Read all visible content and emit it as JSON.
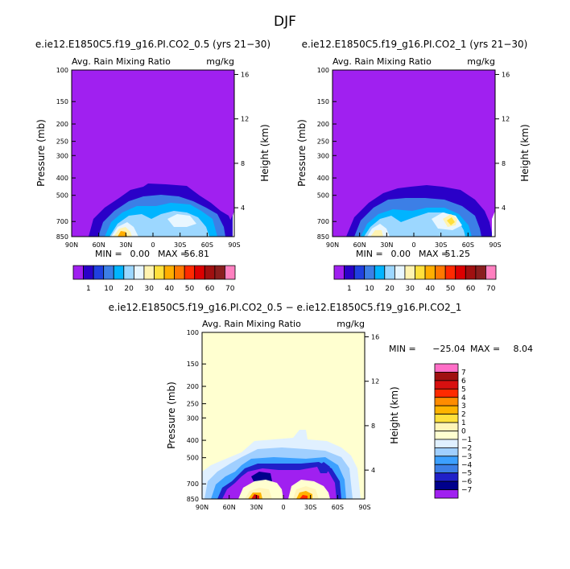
{
  "page_title": "DJF",
  "chart_data": [
    {
      "type": "heatmap",
      "title": "e.ie12.E1850C5.f19_g16.PI.CO2_0.5 (yrs 21−30)",
      "subtitle": "Avg. Rain Mixing Ratio",
      "units": "mg/kg",
      "ylabel": "Pressure (mb)",
      "y2label": "Height (km)",
      "x_ticks": [
        "90N",
        "60N",
        "30N",
        "0",
        "30S",
        "60S",
        "90S"
      ],
      "y_ticks": [
        "100",
        "150",
        "200",
        "250",
        "300",
        "400",
        "500",
        "700",
        "850"
      ],
      "y2_ticks": [
        "16",
        "12",
        "8",
        "4"
      ],
      "min_label": "MIN =",
      "min_value": "0.00",
      "max_label": "MAX =",
      "max_value": "56.81",
      "levels": [
        1,
        10,
        20,
        30,
        40,
        50,
        60,
        70
      ],
      "colorbar_labels": [
        "1",
        "10",
        "20",
        "30",
        "40",
        "50",
        "60",
        "70"
      ],
      "colors": [
        "#a020f0",
        "#2a00c8",
        "#2040e0",
        "#3c7fe6",
        "#00b4ff",
        "#9cd7ff",
        "#e8f6ff",
        "#fff3b0",
        "#ffe03c",
        "#ffae00",
        "#ff7800",
        "#ff2a00",
        "#dc0000",
        "#a01010",
        "#8a1e1e",
        "#ff80c0"
      ]
    },
    {
      "type": "heatmap",
      "title": "e.ie12.E1850C5.f19_g16.PI.CO2_1 (yrs 21−30)",
      "subtitle": "Avg. Rain Mixing Ratio",
      "units": "mg/kg",
      "ylabel": "Pressure (mb)",
      "y2label": "Height (km)",
      "x_ticks": [
        "90N",
        "60N",
        "30N",
        "0",
        "30S",
        "60S",
        "90S"
      ],
      "y_ticks": [
        "100",
        "150",
        "200",
        "250",
        "300",
        "400",
        "500",
        "700",
        "850"
      ],
      "y2_ticks": [
        "16",
        "12",
        "8",
        "4"
      ],
      "min_label": "MIN =",
      "min_value": "0.00",
      "max_label": "MAX =",
      "max_value": "51.25",
      "levels": [
        1,
        10,
        20,
        30,
        40,
        50,
        60,
        70
      ],
      "colorbar_labels": [
        "1",
        "10",
        "20",
        "30",
        "40",
        "50",
        "60",
        "70"
      ],
      "colors": [
        "#a020f0",
        "#2a00c8",
        "#2040e0",
        "#3c7fe6",
        "#00b4ff",
        "#9cd7ff",
        "#e8f6ff",
        "#fff3b0",
        "#ffe03c",
        "#ffae00",
        "#ff7800",
        "#ff2a00",
        "#dc0000",
        "#a01010",
        "#8a1e1e",
        "#ff80c0"
      ]
    },
    {
      "type": "heatmap",
      "title": "e.ie12.E1850C5.f19_g16.PI.CO2_0.5 − e.ie12.E1850C5.f19_g16.PI.CO2_1",
      "subtitle": "Avg. Rain Mixing Ratio",
      "units": "mg/kg",
      "ylabel": "Pressure (mb)",
      "y2label": "Height (km)",
      "x_ticks": [
        "90N",
        "60N",
        "30N",
        "0",
        "30S",
        "60S",
        "90S"
      ],
      "y_ticks": [
        "100",
        "150",
        "200",
        "250",
        "300",
        "400",
        "500",
        "700",
        "850"
      ],
      "y2_ticks": [
        "16",
        "12",
        "8",
        "4"
      ],
      "min_label": "MIN =",
      "min_value": "−25.04",
      "max_label": "MAX =",
      "max_value": "8.04",
      "levels": [
        -7,
        -6,
        -5,
        -4,
        -3,
        -2,
        -1,
        0,
        1,
        2,
        3,
        4,
        5,
        6,
        7
      ],
      "colorbar_labels": [
        "7",
        "6",
        "5",
        "4",
        "3",
        "2",
        "1",
        "0",
        "−1",
        "−2",
        "−3",
        "−4",
        "−5",
        "−6",
        "−7"
      ],
      "colors": [
        "#ff6ec7",
        "#a01010",
        "#d81010",
        "#ff2a00",
        "#ff8c00",
        "#ffb300",
        "#ffe03c",
        "#fff5b8",
        "#ffffd0",
        "#e0f0ff",
        "#a0cfff",
        "#3ca0ff",
        "#3c7fe6",
        "#2020c8",
        "#00008c",
        "#a020f0"
      ]
    }
  ]
}
